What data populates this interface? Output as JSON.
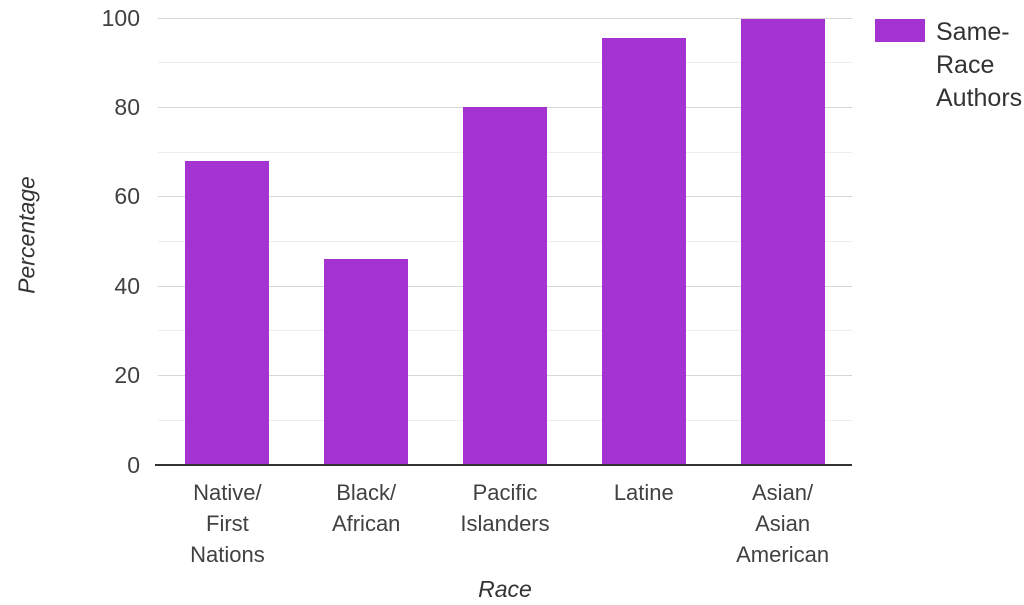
{
  "chart_data": {
    "type": "bar",
    "title": "",
    "xlabel": "Race",
    "ylabel": "Percentage",
    "categories": [
      {
        "label": "Native/First Nations",
        "lines": [
          "Native/",
          "First",
          "Nations"
        ]
      },
      {
        "label": "Black/African",
        "lines": [
          "Black/",
          "African"
        ]
      },
      {
        "label": "Pacific Islanders",
        "lines": [
          "Pacific",
          "Islanders"
        ]
      },
      {
        "label": "Latine",
        "lines": [
          "Latine"
        ]
      },
      {
        "label": "Asian/Asian American",
        "lines": [
          "Asian/",
          "Asian",
          "American"
        ]
      }
    ],
    "series": [
      {
        "name": "Same-Race Authors",
        "values": [
          68,
          46,
          80,
          95.5,
          99.8
        ]
      }
    ],
    "ylim": [
      0,
      100
    ],
    "yticks_major": [
      0,
      20,
      40,
      60,
      80,
      100
    ],
    "yticks_minor": [
      10,
      30,
      50,
      70,
      90
    ],
    "grid": "horizontal",
    "legend_position": "top-right-outside"
  },
  "legend": {
    "label": "Same-Race Authors",
    "lines": [
      "Same-",
      "Race",
      "Authors"
    ]
  },
  "colors": {
    "bar": "#A433D1",
    "grid_major": "#D6D6D6",
    "grid_minor": "#EDEDED",
    "axis_line": "#333333",
    "tick_text": "#414141",
    "title_text": "#333333"
  }
}
